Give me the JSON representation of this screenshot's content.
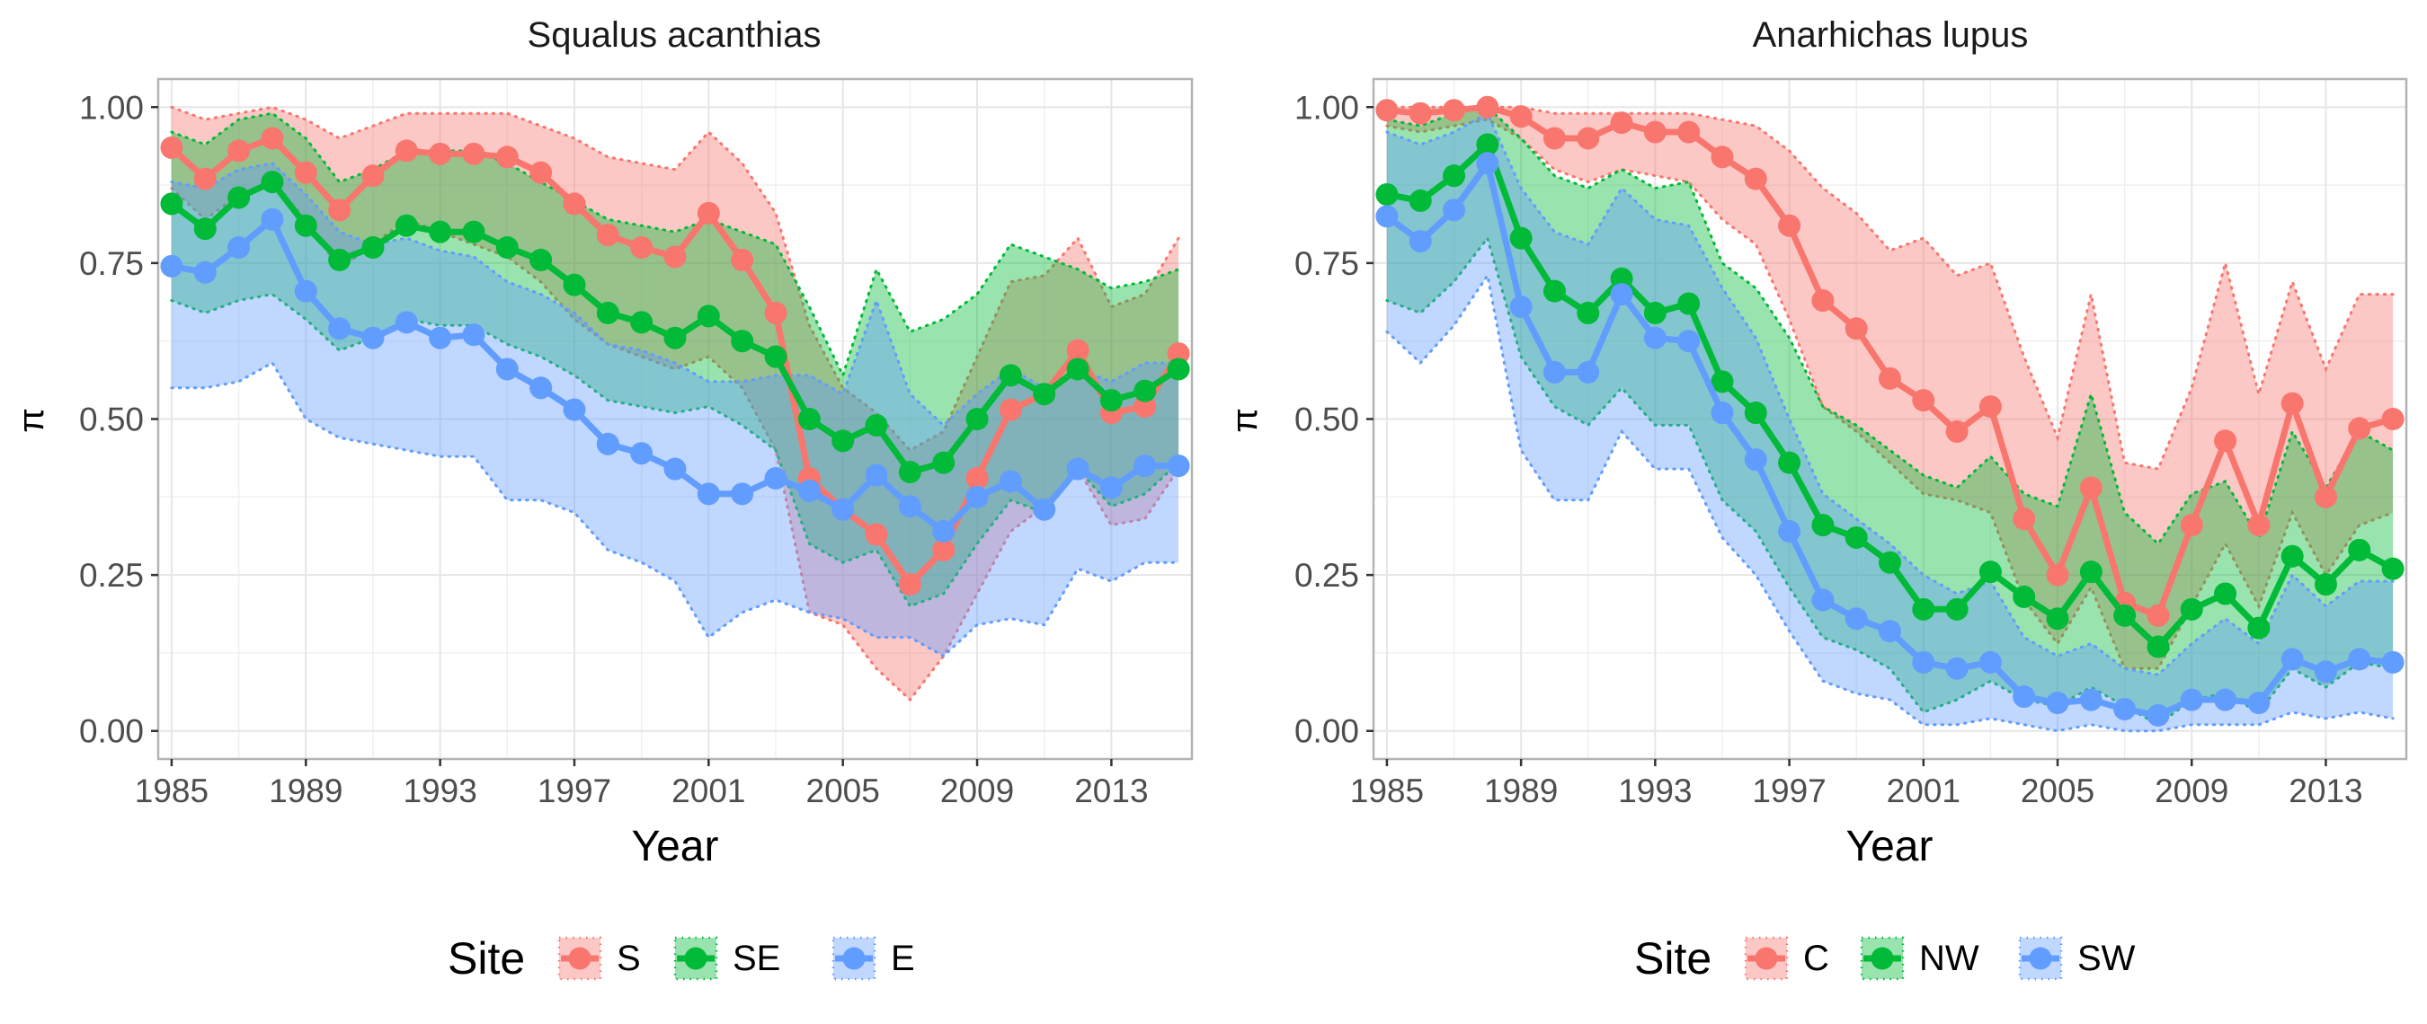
{
  "figure": {
    "ylabel_symbol": "π"
  },
  "chart_data": [
    {
      "type": "line",
      "title": "Squalus acanthias",
      "xlabel": "Year",
      "ylabel": "π",
      "xlim": [
        1984.6,
        2015.4
      ],
      "ylim": [
        -0.045,
        1.045
      ],
      "xticks": [
        1985,
        1989,
        1993,
        1997,
        2001,
        2005,
        2009,
        2013
      ],
      "xtick_labels": [
        "1985",
        "1989",
        "1993",
        "1997",
        "2001",
        "2005",
        "2009",
        "2013"
      ],
      "yticks": [
        0,
        0.25,
        0.5,
        0.75,
        1
      ],
      "ytick_labels": [
        "0.00",
        "0.25",
        "0.50",
        "0.75",
        "1.00"
      ],
      "x": [
        1985,
        1986,
        1987,
        1988,
        1989,
        1990,
        1991,
        1992,
        1993,
        1994,
        1995,
        1996,
        1997,
        1998,
        1999,
        2000,
        2001,
        2002,
        2003,
        2004,
        2005,
        2006,
        2007,
        2008,
        2009,
        2010,
        2011,
        2012,
        2013,
        2014,
        2015
      ],
      "legend": {
        "title": "Site",
        "position": "bottom",
        "labels": [
          "S",
          "SE",
          "E"
        ]
      },
      "series": [
        {
          "name": "S",
          "color": "#F8766D",
          "values": [
            0.935,
            0.885,
            0.93,
            0.95,
            0.895,
            0.835,
            0.89,
            0.93,
            0.925,
            0.925,
            0.92,
            0.895,
            0.845,
            0.795,
            0.775,
            0.76,
            0.83,
            0.755,
            0.67,
            0.405,
            0.355,
            0.315,
            0.235,
            0.29,
            0.405,
            0.515,
            0.54,
            0.61,
            0.51,
            0.52,
            0.605
          ],
          "lower": [
            0.87,
            0.82,
            0.86,
            0.88,
            0.82,
            0.74,
            0.78,
            0.82,
            0.8,
            0.78,
            0.76,
            0.72,
            0.66,
            0.62,
            0.6,
            0.58,
            0.6,
            0.55,
            0.45,
            0.19,
            0.17,
            0.1,
            0.05,
            0.12,
            0.22,
            0.32,
            0.36,
            0.42,
            0.33,
            0.34,
            0.42
          ],
          "upper": [
            1.0,
            0.98,
            0.99,
            1.0,
            0.98,
            0.95,
            0.97,
            0.99,
            0.99,
            0.99,
            0.99,
            0.97,
            0.95,
            0.92,
            0.91,
            0.9,
            0.96,
            0.91,
            0.83,
            0.65,
            0.55,
            0.51,
            0.45,
            0.48,
            0.6,
            0.72,
            0.73,
            0.79,
            0.68,
            0.7,
            0.79
          ]
        },
        {
          "name": "SE",
          "color": "#00BA38",
          "values": [
            0.845,
            0.805,
            0.855,
            0.88,
            0.81,
            0.755,
            0.775,
            0.81,
            0.8,
            0.8,
            0.775,
            0.755,
            0.715,
            0.67,
            0.655,
            0.63,
            0.665,
            0.625,
            0.6,
            0.5,
            0.465,
            0.49,
            0.415,
            0.43,
            0.5,
            0.57,
            0.54,
            0.58,
            0.53,
            0.545,
            0.58
          ],
          "lower": [
            0.69,
            0.67,
            0.69,
            0.7,
            0.66,
            0.61,
            0.63,
            0.66,
            0.65,
            0.65,
            0.62,
            0.6,
            0.57,
            0.53,
            0.52,
            0.51,
            0.52,
            0.49,
            0.45,
            0.3,
            0.27,
            0.29,
            0.2,
            0.22,
            0.3,
            0.37,
            0.35,
            0.42,
            0.36,
            0.38,
            0.43
          ],
          "upper": [
            0.96,
            0.94,
            0.98,
            0.99,
            0.95,
            0.88,
            0.9,
            0.93,
            0.93,
            0.93,
            0.91,
            0.88,
            0.85,
            0.82,
            0.81,
            0.8,
            0.82,
            0.8,
            0.78,
            0.68,
            0.57,
            0.74,
            0.64,
            0.66,
            0.7,
            0.78,
            0.76,
            0.74,
            0.71,
            0.72,
            0.74
          ]
        },
        {
          "name": "E",
          "color": "#619CFF",
          "values": [
            0.745,
            0.735,
            0.775,
            0.82,
            0.705,
            0.645,
            0.63,
            0.655,
            0.63,
            0.635,
            0.58,
            0.55,
            0.515,
            0.46,
            0.445,
            0.42,
            0.38,
            0.38,
            0.405,
            0.385,
            0.355,
            0.41,
            0.36,
            0.32,
            0.375,
            0.4,
            0.355,
            0.42,
            0.39,
            0.425,
            0.425
          ],
          "lower": [
            0.55,
            0.55,
            0.56,
            0.59,
            0.5,
            0.47,
            0.46,
            0.45,
            0.44,
            0.44,
            0.37,
            0.37,
            0.35,
            0.29,
            0.27,
            0.24,
            0.15,
            0.19,
            0.21,
            0.19,
            0.18,
            0.15,
            0.15,
            0.12,
            0.17,
            0.18,
            0.17,
            0.26,
            0.24,
            0.27,
            0.27
          ],
          "upper": [
            0.88,
            0.87,
            0.9,
            0.91,
            0.86,
            0.8,
            0.78,
            0.79,
            0.77,
            0.76,
            0.72,
            0.7,
            0.67,
            0.62,
            0.61,
            0.59,
            0.56,
            0.56,
            0.57,
            0.57,
            0.54,
            0.69,
            0.54,
            0.49,
            0.54,
            0.58,
            0.55,
            0.58,
            0.56,
            0.59,
            0.59
          ]
        }
      ]
    },
    {
      "type": "line",
      "title": "Anarhichas lupus",
      "xlabel": "Year",
      "ylabel": "π",
      "xlim": [
        1984.6,
        2015.4
      ],
      "ylim": [
        -0.045,
        1.045
      ],
      "xticks": [
        1985,
        1989,
        1993,
        1997,
        2001,
        2005,
        2009,
        2013
      ],
      "xtick_labels": [
        "1985",
        "1989",
        "1993",
        "1997",
        "2001",
        "2005",
        "2009",
        "2013"
      ],
      "yticks": [
        0,
        0.25,
        0.5,
        0.75,
        1
      ],
      "ytick_labels": [
        "0.00",
        "0.25",
        "0.50",
        "0.75",
        "1.00"
      ],
      "x": [
        1985,
        1986,
        1987,
        1988,
        1989,
        1990,
        1991,
        1992,
        1993,
        1994,
        1995,
        1996,
        1997,
        1998,
        1999,
        2000,
        2001,
        2002,
        2003,
        2004,
        2005,
        2006,
        2007,
        2008,
        2009,
        2010,
        2011,
        2012,
        2013,
        2014,
        2015
      ],
      "legend": {
        "title": "Site",
        "position": "bottom",
        "labels": [
          "C",
          "NW",
          "SW"
        ]
      },
      "series": [
        {
          "name": "C",
          "color": "#F8766D",
          "values": [
            0.995,
            0.99,
            0.995,
            1.0,
            0.985,
            0.95,
            0.95,
            0.975,
            0.96,
            0.96,
            0.92,
            0.885,
            0.81,
            0.69,
            0.645,
            0.565,
            0.53,
            0.48,
            0.52,
            0.34,
            0.25,
            0.39,
            0.205,
            0.185,
            0.33,
            0.465,
            0.33,
            0.525,
            0.375,
            0.485,
            0.5
          ],
          "lower": [
            0.97,
            0.96,
            0.97,
            0.98,
            0.95,
            0.9,
            0.88,
            0.9,
            0.89,
            0.88,
            0.82,
            0.78,
            0.66,
            0.52,
            0.48,
            0.43,
            0.38,
            0.37,
            0.35,
            0.21,
            0.14,
            0.23,
            0.1,
            0.1,
            0.2,
            0.3,
            0.2,
            0.35,
            0.25,
            0.33,
            0.35
          ],
          "upper": [
            1.0,
            1.0,
            1.0,
            1.0,
            1.0,
            0.99,
            0.99,
            0.99,
            0.99,
            0.99,
            0.98,
            0.97,
            0.93,
            0.87,
            0.83,
            0.77,
            0.79,
            0.73,
            0.75,
            0.6,
            0.47,
            0.7,
            0.43,
            0.42,
            0.55,
            0.75,
            0.54,
            0.72,
            0.58,
            0.7,
            0.7
          ]
        },
        {
          "name": "NW",
          "color": "#00BA38",
          "values": [
            0.86,
            0.85,
            0.89,
            0.94,
            0.79,
            0.705,
            0.67,
            0.725,
            0.67,
            0.685,
            0.56,
            0.51,
            0.43,
            0.33,
            0.31,
            0.27,
            0.195,
            0.195,
            0.255,
            0.215,
            0.18,
            0.255,
            0.185,
            0.135,
            0.195,
            0.22,
            0.165,
            0.28,
            0.235,
            0.29,
            0.26
          ],
          "lower": [
            0.69,
            0.67,
            0.72,
            0.79,
            0.6,
            0.52,
            0.49,
            0.55,
            0.49,
            0.49,
            0.37,
            0.32,
            0.23,
            0.15,
            0.13,
            0.1,
            0.03,
            0.05,
            0.08,
            0.05,
            0.04,
            0.07,
            0.04,
            0.01,
            0.05,
            0.06,
            0.03,
            0.1,
            0.07,
            0.11,
            0.1
          ],
          "upper": [
            0.98,
            0.97,
            0.99,
            1.0,
            0.95,
            0.89,
            0.87,
            0.9,
            0.87,
            0.88,
            0.75,
            0.71,
            0.63,
            0.52,
            0.49,
            0.45,
            0.41,
            0.39,
            0.44,
            0.38,
            0.36,
            0.54,
            0.35,
            0.3,
            0.38,
            0.4,
            0.31,
            0.48,
            0.39,
            0.48,
            0.45
          ]
        },
        {
          "name": "SW",
          "color": "#619CFF",
          "values": [
            0.825,
            0.785,
            0.835,
            0.91,
            0.68,
            0.575,
            0.575,
            0.7,
            0.63,
            0.625,
            0.51,
            0.435,
            0.32,
            0.21,
            0.18,
            0.16,
            0.11,
            0.1,
            0.11,
            0.055,
            0.045,
            0.05,
            0.035,
            0.025,
            0.05,
            0.05,
            0.045,
            0.115,
            0.095,
            0.115,
            0.11
          ],
          "lower": [
            0.64,
            0.59,
            0.65,
            0.73,
            0.45,
            0.37,
            0.37,
            0.48,
            0.42,
            0.42,
            0.31,
            0.25,
            0.16,
            0.08,
            0.06,
            0.05,
            0.01,
            0.01,
            0.02,
            0.01,
            0.0,
            0.01,
            0.0,
            0.0,
            0.01,
            0.01,
            0.01,
            0.03,
            0.02,
            0.03,
            0.02
          ],
          "upper": [
            0.96,
            0.94,
            0.96,
            0.99,
            0.87,
            0.8,
            0.78,
            0.87,
            0.82,
            0.81,
            0.71,
            0.63,
            0.5,
            0.38,
            0.34,
            0.3,
            0.25,
            0.22,
            0.24,
            0.15,
            0.12,
            0.14,
            0.1,
            0.09,
            0.14,
            0.18,
            0.14,
            0.25,
            0.2,
            0.24,
            0.24
          ]
        }
      ]
    }
  ]
}
